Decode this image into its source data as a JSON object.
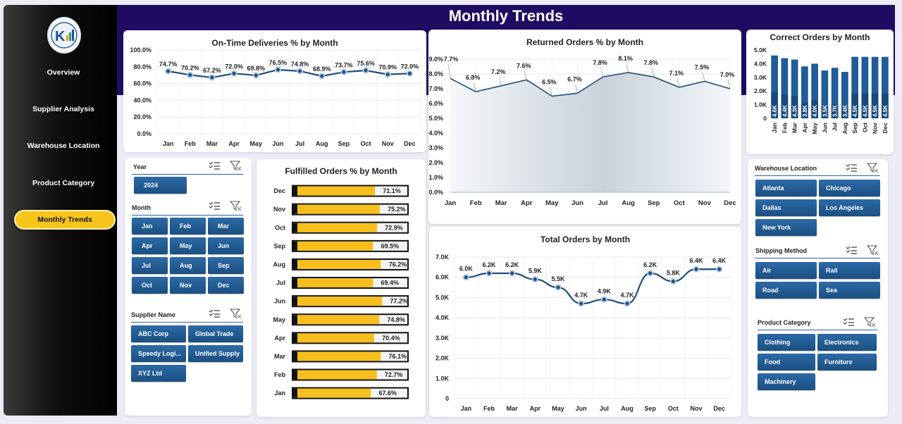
{
  "title": "Monthly Trends",
  "nav": [
    {
      "label": "Overview",
      "active": false
    },
    {
      "label": "Supplier Analysis",
      "active": false
    },
    {
      "label": "Warehouse Location",
      "active": false
    },
    {
      "label": "Product Category",
      "active": false
    },
    {
      "label": "Monthly Trends",
      "active": true
    }
  ],
  "slicers": {
    "year": {
      "label": "Year",
      "items": [
        "2024"
      ]
    },
    "month": {
      "label": "Month",
      "items": [
        "Jan",
        "Feb",
        "Mar",
        "Apr",
        "May",
        "Jun",
        "Jul",
        "Aug",
        "Sep",
        "Oct",
        "Nov",
        "Dec"
      ]
    },
    "supplier": {
      "label": "Supplier Name",
      "items": [
        "ABC Corp",
        "Global Trade",
        "Speedy Logi...",
        "Unified Supply",
        "XYZ Ltd"
      ]
    },
    "warehouse": {
      "label": "Warehouse Location",
      "items": [
        "Atlanta",
        "Chicago",
        "Dallas",
        "Los Angeles",
        "New York"
      ]
    },
    "shipping": {
      "label": "Shipping Method",
      "items": [
        "Air",
        "Rail",
        "Road",
        "Sea"
      ]
    },
    "category": {
      "label": "Product Category",
      "items": [
        "Clothing",
        "Electronics",
        "Food",
        "Furniture",
        "Machinery"
      ]
    }
  },
  "chart_data": [
    {
      "id": "ontime",
      "type": "line",
      "title": "On-Time Deliveries % by Month",
      "categories": [
        "Jan",
        "Feb",
        "Mar",
        "Apr",
        "May",
        "Jun",
        "Jul",
        "Aug",
        "Sep",
        "Oct",
        "Nov",
        "Dec"
      ],
      "values": [
        74.7,
        70.2,
        67.2,
        72.0,
        69.8,
        76.5,
        74.8,
        68.9,
        73.7,
        75.6,
        70.9,
        72.0
      ],
      "labels": [
        "74.7%",
        "70.2%",
        "67.2%",
        "72.0%",
        "69.8%",
        "76.5%",
        "74.8%",
        "68.9%",
        "73.7%",
        "75.6%",
        "70.9%",
        "72.0%"
      ],
      "yticks": [
        "0.0%",
        "20.0%",
        "40.0%",
        "60.0%",
        "80.0%",
        "100.0%"
      ],
      "ylim": [
        0,
        100
      ]
    },
    {
      "id": "returned",
      "type": "area",
      "title": "Returned Orders % by Month",
      "categories": [
        "Jan",
        "Feb",
        "Mar",
        "Apr",
        "May",
        "Jun",
        "Jul",
        "Aug",
        "Sep",
        "Oct",
        "Nov",
        "Dec"
      ],
      "values": [
        7.7,
        6.8,
        7.2,
        7.6,
        6.5,
        6.7,
        7.8,
        8.1,
        7.8,
        7.1,
        7.5,
        7.0
      ],
      "labels": [
        "7.7%",
        "6.8%",
        "7.2%",
        "7.6%",
        "6.5%",
        "6.7%",
        "7.8%",
        "8.1%",
        "7.8%",
        "7.1%",
        "7.5%",
        "7.0%"
      ],
      "yticks": [
        "0.0%",
        "1.0%",
        "2.0%",
        "3.0%",
        "4.0%",
        "5.0%",
        "6.0%",
        "7.0%",
        "8.0%",
        "9.0%"
      ],
      "ylim": [
        0,
        9
      ]
    },
    {
      "id": "correct",
      "type": "bar",
      "title": "Correct Orders by Month",
      "categories": [
        "Jan",
        "Feb",
        "Mar",
        "Apr",
        "May",
        "Jun",
        "Jul",
        "Aug",
        "Sep",
        "Oct",
        "Nov",
        "Dec"
      ],
      "values": [
        4.6,
        4.4,
        4.3,
        3.8,
        4.0,
        3.5,
        3.7,
        3.4,
        4.5,
        4.5,
        4.5,
        4.5
      ],
      "labels": [
        "4.6K",
        "4.4K",
        "4.3K",
        "3.8K",
        "4.0K",
        "3.5K",
        "3.7K",
        "3.4K",
        "4.5K",
        "4.5K",
        "4.5K",
        "4.5K"
      ],
      "yticks": [
        "0",
        "1.0K",
        "2.0K",
        "3.0K",
        "4.0K",
        "5.0K"
      ],
      "ylim": [
        0,
        5
      ],
      "unit": "thousands"
    },
    {
      "id": "fulfilled",
      "type": "bar",
      "orientation": "horizontal",
      "title": "Fulfilled Orders % by Month",
      "categories": [
        "Dec",
        "Nov",
        "Oct",
        "Sep",
        "Aug",
        "Jul",
        "Jun",
        "May",
        "Apr",
        "Mar",
        "Feb",
        "Jan"
      ],
      "values": [
        71.1,
        75.2,
        72.9,
        69.5,
        76.2,
        69.4,
        77.2,
        74.8,
        70.4,
        76.1,
        72.7,
        67.6
      ],
      "labels": [
        "71.1%",
        "75.2%",
        "72.9%",
        "69.5%",
        "76.2%",
        "69.4%",
        "77.2%",
        "74.8%",
        "70.4%",
        "76.1%",
        "72.7%",
        "67.6%"
      ],
      "xlim": [
        0,
        100
      ]
    },
    {
      "id": "total",
      "type": "line",
      "title": "Total Orders by Month",
      "categories": [
        "Jan",
        "Feb",
        "Mar",
        "Apr",
        "May",
        "Jun",
        "Jul",
        "Aug",
        "Sep",
        "Oct",
        "Nov",
        "Dec"
      ],
      "values": [
        6.0,
        6.2,
        6.2,
        5.9,
        5.5,
        4.7,
        4.9,
        4.7,
        6.2,
        5.8,
        6.4,
        6.4
      ],
      "labels": [
        "6.0K",
        "6.2K",
        "6.2K",
        "5.9K",
        "5.5K",
        "4.7K",
        "4.9K",
        "4.7K",
        "6.2K",
        "5.8K",
        "6.4K",
        "6.4K"
      ],
      "yticks": [
        "0",
        "1.0K",
        "2.0K",
        "3.0K",
        "4.0K",
        "5.0K",
        "6.0K",
        "7.0K"
      ],
      "ylim": [
        0,
        7
      ],
      "unit": "thousands"
    }
  ]
}
